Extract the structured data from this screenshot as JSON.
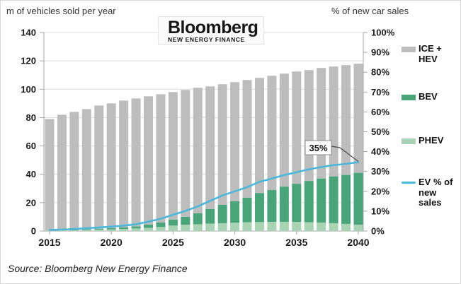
{
  "page": {
    "left_axis_title": "m of vehicles sold per year",
    "right_axis_title": "% of new car sales",
    "source": "Source: Bloomberg New Energy Finance"
  },
  "logo": {
    "brand": "Bloomberg",
    "subtitle": "NEW ENERGY FINANCE"
  },
  "annotation": {
    "label": "35%"
  },
  "legend": {
    "items": [
      {
        "id": "ice-hev",
        "swatch": "gray-box",
        "lines": [
          "ICE +",
          "HEV"
        ]
      },
      {
        "id": "bev",
        "swatch": "dark-green-box",
        "lines": [
          "BEV"
        ]
      },
      {
        "id": "phev",
        "swatch": "light-green-box",
        "lines": [
          "PHEV"
        ]
      },
      {
        "id": "ev-share",
        "swatch": "blue-line",
        "lines": [
          "EV % of",
          "new",
          "sales"
        ]
      }
    ]
  },
  "colors": {
    "ice_hev": "#bdbdbd",
    "bev": "#4aa47a",
    "phev": "#a8d3b5",
    "ev_line": "#4cb7da",
    "grid": "#dcdcdc",
    "axis": "#a6a6a6",
    "callout": "#555555"
  },
  "chart_data": {
    "type": "combo-stacked-bar-line",
    "title": "",
    "x": [
      2015,
      2016,
      2017,
      2018,
      2019,
      2020,
      2021,
      2022,
      2023,
      2024,
      2025,
      2026,
      2027,
      2028,
      2029,
      2030,
      2031,
      2032,
      2033,
      2034,
      2035,
      2036,
      2037,
      2038,
      2039,
      2040
    ],
    "series": [
      {
        "name": "PHEV",
        "type": "bar",
        "stack": "vehicles",
        "axis": "left",
        "values": [
          0.3,
          0.4,
          0.5,
          0.7,
          0.9,
          1.1,
          1.4,
          1.8,
          2.2,
          2.8,
          3.8,
          4.4,
          4.7,
          5.2,
          5.5,
          5.8,
          6.1,
          6.3,
          6.4,
          6.5,
          6.4,
          6.2,
          5.9,
          5.5,
          5.0,
          4.5
        ]
      },
      {
        "name": "BEV",
        "type": "bar",
        "stack": "vehicles",
        "axis": "left",
        "values": [
          0.1,
          0.2,
          0.3,
          0.5,
          0.7,
          0.9,
          1.1,
          1.4,
          2.3,
          3.2,
          4.2,
          5.6,
          7.8,
          10.3,
          13.0,
          15.2,
          17.4,
          20.5,
          22.5,
          24.8,
          26.9,
          29.1,
          31.1,
          33.0,
          34.5,
          36.5
        ]
      },
      {
        "name": "ICE + HEV",
        "type": "bar",
        "stack": "vehicles",
        "axis": "left",
        "values": [
          78.6,
          81.4,
          83.2,
          84.8,
          86.9,
          88.0,
          89.5,
          90.3,
          90.5,
          90.5,
          90.0,
          89.5,
          88.5,
          86.5,
          85.0,
          84.0,
          83.0,
          81.2,
          80.6,
          79.7,
          79.2,
          78.2,
          78.0,
          77.5,
          77.5,
          77.0
        ]
      },
      {
        "name": "EV % of new sales",
        "type": "line",
        "axis": "right",
        "values": [
          0.5,
          0.7,
          1.0,
          1.4,
          1.8,
          2.2,
          2.7,
          3.4,
          4.7,
          6.2,
          8.2,
          10.1,
          12.4,
          15.2,
          17.9,
          20.0,
          22.1,
          24.8,
          26.4,
          28.2,
          29.6,
          31.1,
          32.2,
          33.2,
          33.8,
          34.7
        ]
      }
    ],
    "left_axis": {
      "title": "m of vehicles sold per year",
      "min": 0,
      "max": 140,
      "step": 20,
      "ticks": [
        "140",
        "120",
        "100",
        "80",
        "60",
        "40",
        "20",
        "0"
      ]
    },
    "right_axis": {
      "title": "% of new car sales",
      "min": 0,
      "max": 100,
      "step": 10,
      "ticks": [
        "100%",
        "90%",
        "80%",
        "70%",
        "60%",
        "50%",
        "40%",
        "30%",
        "20%",
        "10%",
        "0%"
      ]
    },
    "x_ticks": [
      "2015",
      "2020",
      "2025",
      "2030",
      "2035",
      "2040"
    ],
    "annotation": {
      "text": "35%",
      "points_to": {
        "year": 2040,
        "value_pct": 35
      }
    },
    "grid": true,
    "legend_position": "right"
  }
}
